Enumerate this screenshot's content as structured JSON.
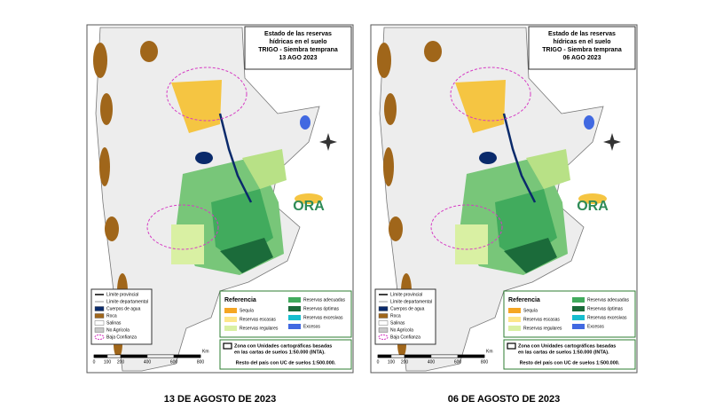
{
  "panels": [
    {
      "title": [
        "Estado de las reservas",
        "hídricas en el suelo",
        "TRIGO - Siembra temprana"
      ],
      "date": "13 AGO 2023",
      "caption": "13 DE AGOSTO DE 2023"
    },
    {
      "title": [
        "Estado de las reservas",
        "hídricas en el suelo",
        "TRIGO - Siembra temprana"
      ],
      "date": "06 AGO 2023",
      "caption": "06 DE AGOSTO DE 2023"
    }
  ],
  "legend": [
    {
      "label": "Límite provincial",
      "color": "#000000"
    },
    {
      "label": "Límite departamental",
      "color": "#9a9a9a"
    },
    {
      "label": "Cuerpos de agua",
      "color": "#0a2a6b"
    },
    {
      "label": "Roca",
      "color": "#a0661a"
    },
    {
      "label": "Salinas",
      "color": "#ffffff"
    },
    {
      "label": "No Agrícola",
      "color": "#c8c8c8"
    },
    {
      "label": "Baja Confianza",
      "color": "#d63cc4"
    }
  ],
  "reference": {
    "title": "Referencia",
    "items": [
      {
        "label": "Sequía",
        "color": "#f5a623"
      },
      {
        "label": "Reservas escasas",
        "color": "#fde68a"
      },
      {
        "label": "Reservas regulares",
        "color": "#d9f0a3"
      },
      {
        "label": "Reservas adecuadas",
        "color": "#41ab5d"
      },
      {
        "label": "Reservas óptimas",
        "color": "#1b6b3a"
      },
      {
        "label": "Reservas excesivas",
        "color": "#17becf"
      },
      {
        "label": "Excesos",
        "color": "#4169e1"
      }
    ]
  },
  "zone_note": [
    "Zona con Unidades cartográficas basadas",
    "en las cartas de suelos 1:50.000 (INTA)."
  ],
  "rest_note": "Resto del país con UC de suelos 1:500.000.",
  "scale": {
    "labels": [
      0,
      100,
      200,
      400,
      600,
      800
    ],
    "unit": "Km"
  },
  "logo": "ORA"
}
